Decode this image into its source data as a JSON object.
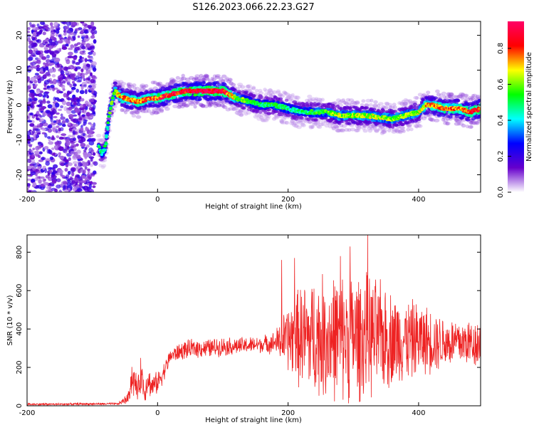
{
  "title": "S126.2023.066.22.23.G27",
  "chart_data": [
    {
      "type": "heatmap",
      "xlabel": "Height of straight line (km)",
      "ylabel": "Frequency (Hz)",
      "xlim": [
        -200,
        495
      ],
      "ylim": [
        -25,
        24
      ],
      "xticks": [
        -200,
        0,
        200,
        400
      ],
      "yticks": [
        -20,
        -10,
        0,
        10,
        20
      ],
      "colorbar": {
        "label": "Normalized spectral amplitude",
        "range": [
          0,
          0.95
        ],
        "ticks": [
          "0.0",
          "0.2",
          "0.4",
          "0.6",
          "0.8"
        ],
        "colors": [
          "#ffffff",
          "#6600cc",
          "#0000ff",
          "#00ffff",
          "#00ff00",
          "#ffff00",
          "#ff0000",
          "#ff0066"
        ]
      },
      "noise_region_x": [
        -200,
        -95
      ],
      "ridge": {
        "x": [
          -90,
          -85,
          -80,
          -75,
          -70,
          -65,
          -60,
          -55,
          -50,
          -40,
          -30,
          -20,
          -10,
          0,
          20,
          40,
          60,
          80,
          100,
          110,
          120,
          140,
          160,
          180,
          200,
          220,
          240,
          260,
          280,
          300,
          320,
          340,
          360,
          380,
          400,
          410,
          420,
          440,
          460,
          480,
          495
        ],
        "freq": [
          -12,
          -14,
          -12,
          -4,
          1,
          4,
          3,
          2,
          2,
          1.5,
          1,
          1.5,
          2,
          2,
          3,
          4,
          4,
          4,
          4,
          3,
          2,
          1,
          0,
          0,
          -1,
          -2,
          -2,
          -2,
          -3,
          -3,
          -3,
          -3.5,
          -4,
          -3,
          -2,
          0,
          0,
          -1,
          -1,
          -2,
          -1
        ],
        "amp": [
          0.45,
          0.5,
          0.5,
          0.55,
          0.6,
          0.65,
          0.7,
          0.75,
          0.78,
          0.8,
          0.8,
          0.82,
          0.82,
          0.85,
          0.88,
          0.92,
          0.95,
          0.95,
          0.92,
          0.8,
          0.65,
          0.55,
          0.5,
          0.55,
          0.5,
          0.5,
          0.55,
          0.6,
          0.65,
          0.65,
          0.65,
          0.65,
          0.62,
          0.62,
          0.65,
          0.75,
          0.8,
          0.82,
          0.82,
          0.85,
          0.85
        ]
      }
    },
    {
      "type": "line",
      "xlabel": "Height of straight line (km)",
      "ylabel": "SNR (10 * v/v)",
      "xlim": [
        -200,
        495
      ],
      "ylim": [
        0,
        890
      ],
      "xticks": [
        -200,
        0,
        200,
        400
      ],
      "yticks": [
        0,
        200,
        400,
        600,
        800
      ],
      "color": "#ee2222",
      "series": [
        {
          "x": [
            -200,
            -150,
            -100,
            -60,
            -45,
            -40,
            -35,
            -30,
            -25,
            -20,
            -15,
            -10,
            0,
            10,
            20,
            40,
            60,
            80,
            100,
            120,
            140,
            160,
            180,
            200,
            220,
            240,
            260,
            280,
            300,
            320,
            340,
            360,
            380,
            400,
            420,
            440,
            460,
            480,
            495
          ],
          "mean": [
            8,
            8,
            10,
            10,
            40,
            150,
            120,
            80,
            180,
            60,
            150,
            100,
            120,
            180,
            260,
            290,
            300,
            300,
            310,
            310,
            315,
            320,
            330,
            350,
            360,
            360,
            360,
            360,
            360,
            360,
            355,
            350,
            345,
            345,
            340,
            330,
            330,
            330,
            330
          ],
          "amp": [
            6,
            6,
            6,
            6,
            30,
            100,
            80,
            60,
            110,
            50,
            90,
            60,
            60,
            50,
            40,
            50,
            50,
            50,
            50,
            45,
            45,
            45,
            60,
            180,
            280,
            320,
            330,
            340,
            340,
            330,
            300,
            250,
            220,
            200,
            170,
            140,
            130,
            130,
            130
          ],
          "peaks": [
            [
              190,
              760
            ],
            [
              210,
              770
            ],
            [
              280,
              780
            ],
            [
              295,
              830
            ],
            [
              322,
              890
            ]
          ]
        }
      ]
    }
  ]
}
